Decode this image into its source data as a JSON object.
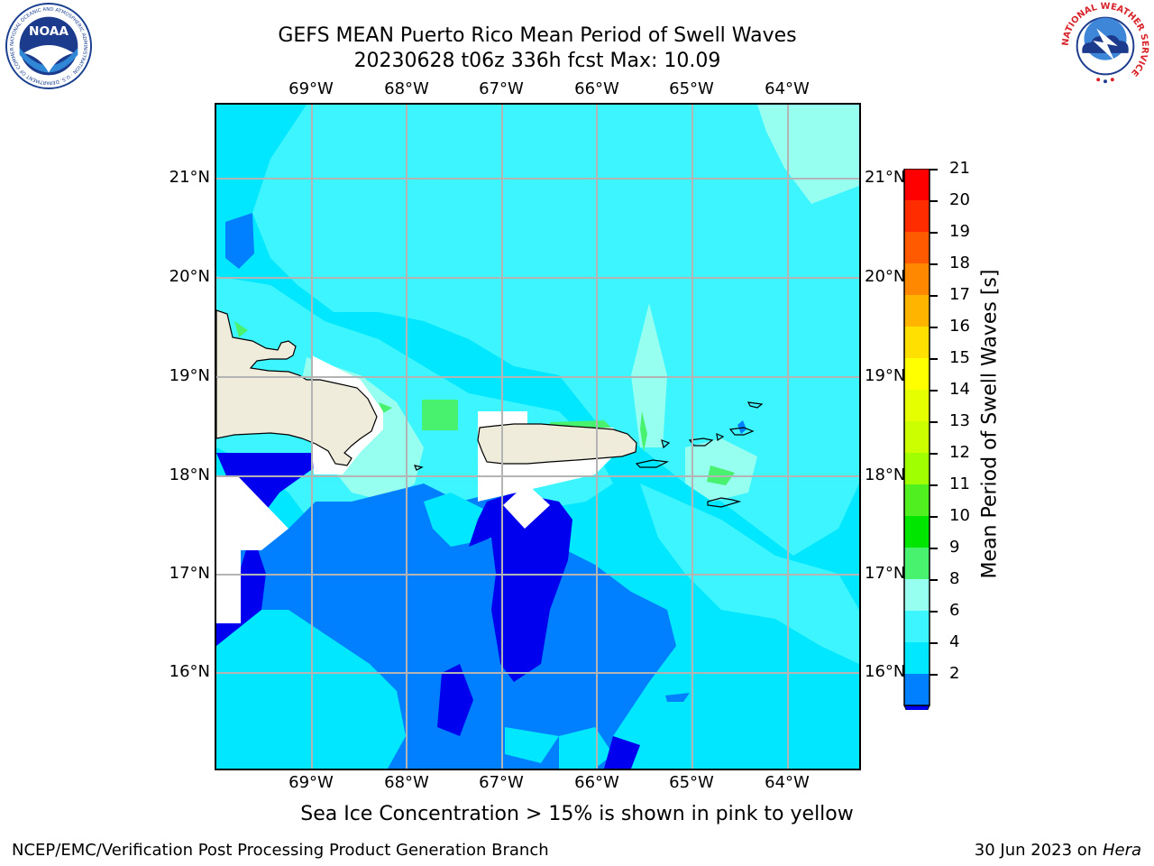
{
  "title": {
    "line1": "GEFS MEAN Puerto Rico Mean Period of Swell Waves",
    "line2": "20230628 t06z 336h fcst   Max: 10.09"
  },
  "map": {
    "lon_labels": [
      "69°W",
      "68°W",
      "67°W",
      "66°W",
      "65°W",
      "64°W"
    ],
    "lat_labels": [
      "21°N",
      "20°N",
      "19°N",
      "18°N",
      "17°N",
      "16°N"
    ],
    "land_color": "#efecdc",
    "grid_color": "#b4b4b4"
  },
  "colorbar": {
    "title": "Mean Period of Swell Waves [s]",
    "ticks": [
      "21",
      "20",
      "19",
      "18",
      "17",
      "16",
      "15",
      "14",
      "13",
      "12",
      "11",
      "10",
      "9",
      "8",
      "6",
      "4",
      "2"
    ],
    "colors": [
      "#ff0000",
      "#ff2c00",
      "#ff5a00",
      "#ff8800",
      "#ffb400",
      "#ffe000",
      "#ffff00",
      "#e6ff00",
      "#ccff00",
      "#a0ff00",
      "#50f020",
      "#00e600",
      "#48f26e",
      "#96fff0",
      "#3cf5ff",
      "#00e7ff",
      "#0080ff",
      "#0000ee"
    ]
  },
  "note": "Sea Ice Concentration > 15% is shown in pink to yellow",
  "footer": {
    "left": "NCEP/EMC/Verification Post Processing Product Generation Branch",
    "right_prefix": "30 Jun 2023 on ",
    "right_host": "Hera"
  },
  "logos": {
    "noaa_text": "NOAA",
    "noaa_ring": "NATIONAL OCEANIC AND ATMOSPHERIC ADMINISTRATION · U.S. DEPARTMENT OF COMMERCE",
    "nws_ring": "NATIONAL WEATHER SERVICE"
  }
}
